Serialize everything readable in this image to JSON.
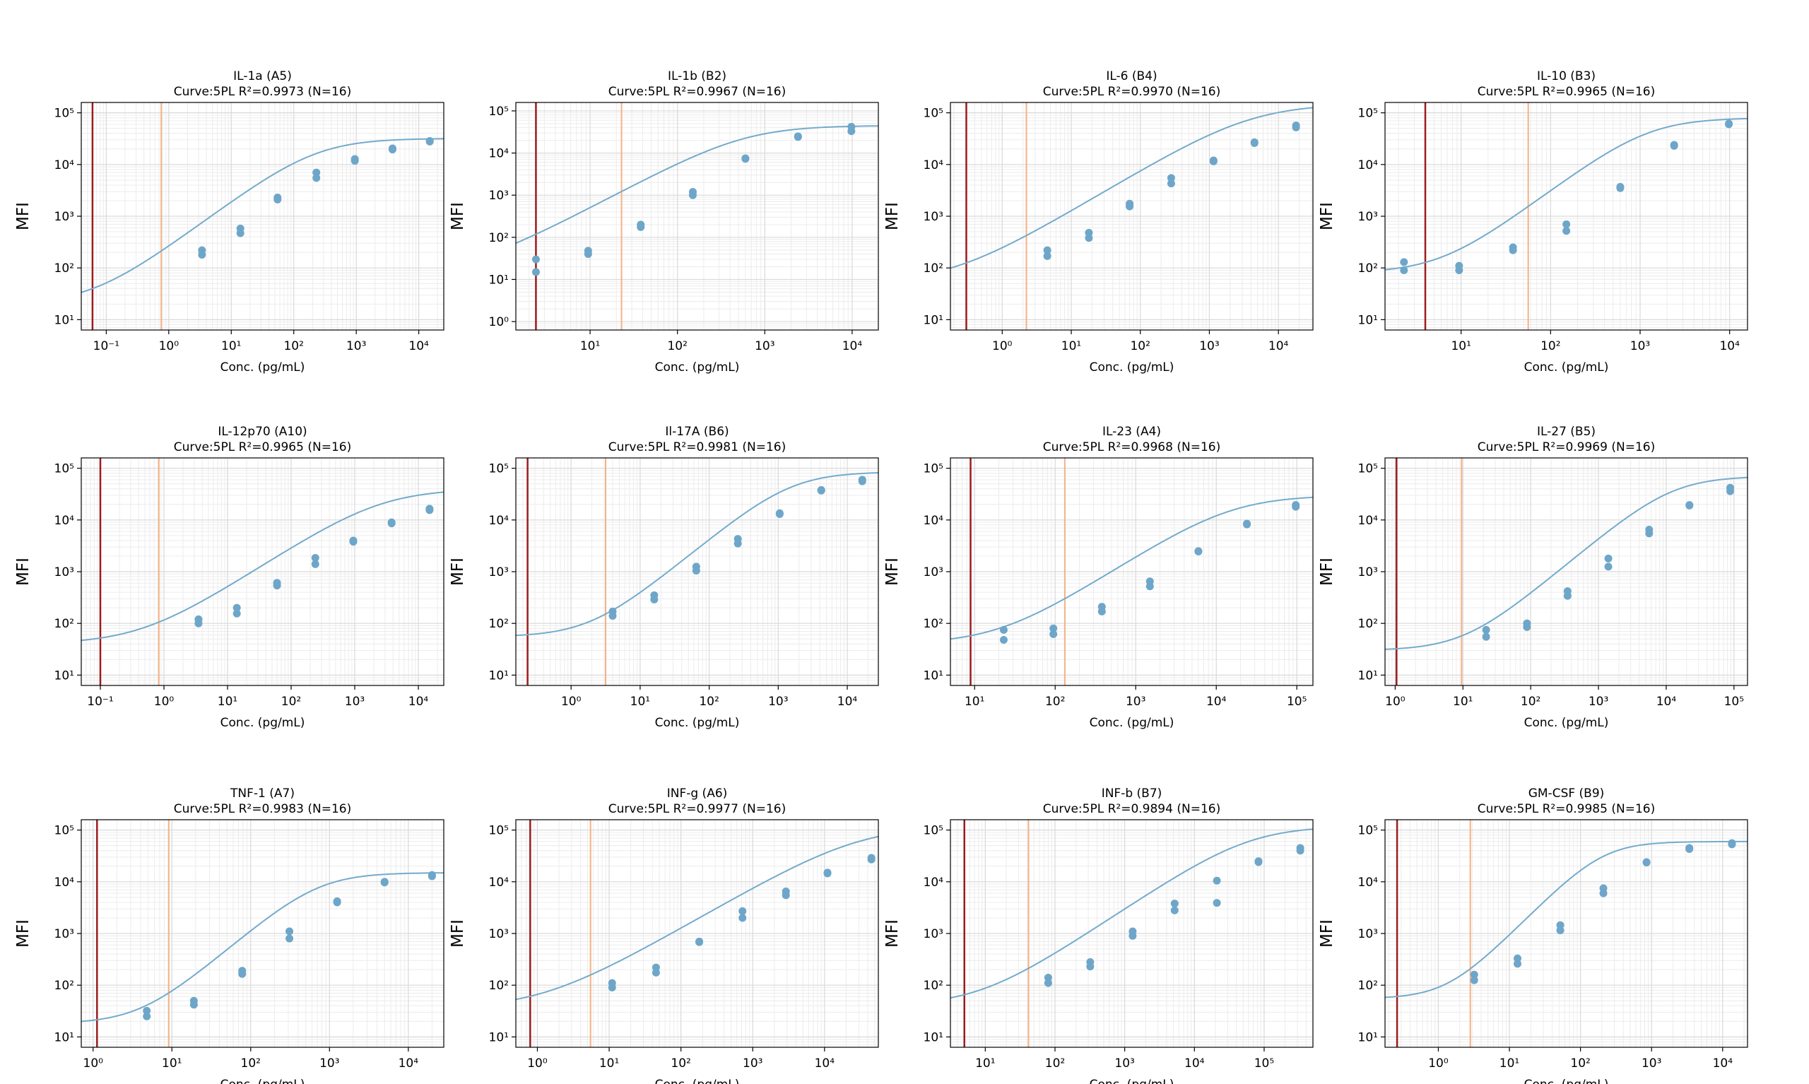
{
  "colors": {
    "curve": "#74aacb",
    "points": "#6ea6c9",
    "lod_line": "#9b1c1c",
    "loq_line": "#f4b183",
    "grid_major": "#d9d9d9",
    "grid_minor": "#ececec",
    "axis": "#000000"
  },
  "chart_data": [
    {
      "type": "scatter",
      "title": "IL-1a (A5)",
      "subtitle": "Curve:5PL R²=0.9973 (N=16)",
      "xlabel": "Conc. (pg/mL)",
      "ylabel": "MFI",
      "xlim_log10": [
        -1.4,
        4.4
      ],
      "ylim_log10": [
        0.8,
        5.2
      ],
      "xticks_exp": [
        -1,
        0,
        1,
        2,
        3,
        4
      ],
      "yticks_exp": [
        1,
        2,
        3,
        4,
        5
      ],
      "lod_log10": -1.22,
      "loq_log10": -0.12,
      "points": [
        [
          3.4,
          220
        ],
        [
          3.4,
          180
        ],
        [
          14,
          580
        ],
        [
          14,
          470
        ],
        [
          55,
          2300
        ],
        [
          55,
          2100
        ],
        [
          230,
          7000
        ],
        [
          230,
          5500
        ],
        [
          950,
          12800
        ],
        [
          950,
          11800
        ],
        [
          3800,
          20500
        ],
        [
          3800,
          19500
        ],
        [
          15000,
          28500
        ],
        [
          15000,
          27800
        ]
      ],
      "curve": {
        "A": 20,
        "D": 32000,
        "C": 220,
        "B": 0.9,
        "G": 1.0
      }
    },
    {
      "type": "scatter",
      "title": "IL-1b (B2)",
      "subtitle": "Curve:5PL R²=0.9967 (N=16)",
      "xlabel": "Conc. (pg/mL)",
      "ylabel": "MFI",
      "xlim_log10": [
        0.15,
        4.3
      ],
      "ylim_log10": [
        -0.2,
        5.2
      ],
      "xticks_exp": [
        1,
        2,
        3,
        4
      ],
      "yticks_exp": [
        0,
        1,
        2,
        3,
        4,
        5
      ],
      "lod_log10": 0.38,
      "loq_log10": 1.36,
      "points": [
        [
          2.4,
          30
        ],
        [
          2.4,
          15
        ],
        [
          9.5,
          48
        ],
        [
          9.5,
          40
        ],
        [
          38,
          200
        ],
        [
          38,
          175
        ],
        [
          150,
          1200
        ],
        [
          150,
          1000
        ],
        [
          600,
          7500
        ],
        [
          600,
          7300
        ],
        [
          2400,
          25000
        ],
        [
          2400,
          24000
        ],
        [
          9800,
          42000
        ],
        [
          9800,
          33000
        ]
      ],
      "curve": {
        "A": 15,
        "D": 45000,
        "C": 600,
        "B": 1.1,
        "G": 1.0
      }
    },
    {
      "type": "scatter",
      "title": "IL-6 (B4)",
      "subtitle": "Curve:5PL R²=0.9970 (N=16)",
      "xlabel": "Conc. (pg/mL)",
      "ylabel": "MFI",
      "xlim_log10": [
        -0.75,
        4.5
      ],
      "ylim_log10": [
        0.8,
        5.2
      ],
      "xticks_exp": [
        0,
        1,
        2,
        3,
        4
      ],
      "yticks_exp": [
        1,
        2,
        3,
        4,
        5
      ],
      "lod_log10": -0.52,
      "loq_log10": 0.35,
      "points": [
        [
          4.5,
          220
        ],
        [
          4.5,
          170
        ],
        [
          18,
          480
        ],
        [
          18,
          380
        ],
        [
          70,
          1750
        ],
        [
          70,
          1550
        ],
        [
          280,
          5500
        ],
        [
          280,
          4300
        ],
        [
          1150,
          12000
        ],
        [
          1150,
          11500
        ],
        [
          4500,
          27000
        ],
        [
          4500,
          26000
        ],
        [
          18000,
          57000
        ],
        [
          18000,
          52000
        ]
      ],
      "curve": {
        "A": 50,
        "D": 150000,
        "C": 4000,
        "B": 0.8,
        "G": 1.0
      }
    },
    {
      "type": "scatter",
      "title": "IL-10 (B3)",
      "subtitle": "Curve:5PL R²=0.9965 (N=16)",
      "xlabel": "Conc. (pg/mL)",
      "ylabel": "MFI",
      "xlim_log10": [
        0.15,
        4.2
      ],
      "ylim_log10": [
        0.8,
        5.2
      ],
      "xticks_exp": [
        1,
        2,
        3,
        4
      ],
      "yticks_exp": [
        1,
        2,
        3,
        4,
        5
      ],
      "lod_log10": 0.6,
      "loq_log10": 1.75,
      "points": [
        [
          2.3,
          130
        ],
        [
          2.3,
          90
        ],
        [
          9.5,
          110
        ],
        [
          9.5,
          90
        ],
        [
          38,
          250
        ],
        [
          38,
          220
        ],
        [
          150,
          700
        ],
        [
          150,
          520
        ],
        [
          600,
          3700
        ],
        [
          600,
          3500
        ],
        [
          2400,
          24000
        ],
        [
          2400,
          23000
        ],
        [
          9800,
          62000
        ],
        [
          9800,
          60000
        ]
      ],
      "curve": {
        "A": 80,
        "D": 80000,
        "C": 1200,
        "B": 1.3,
        "G": 1.0
      }
    },
    {
      "type": "scatter",
      "title": "IL-12p70 (A10)",
      "subtitle": "Curve:5PL R²=0.9965 (N=16)",
      "xlabel": "Conc. (pg/mL)",
      "ylabel": "MFI",
      "xlim_log10": [
        -1.3,
        4.4
      ],
      "ylim_log10": [
        0.8,
        5.2
      ],
      "xticks_exp": [
        -1,
        0,
        1,
        2,
        3,
        4
      ],
      "yticks_exp": [
        1,
        2,
        3,
        4,
        5
      ],
      "lod_log10": -1.0,
      "loq_log10": -0.08,
      "points": [
        [
          3.5,
          120
        ],
        [
          3.5,
          100
        ],
        [
          14,
          200
        ],
        [
          14,
          155
        ],
        [
          60,
          610
        ],
        [
          60,
          540
        ],
        [
          240,
          1850
        ],
        [
          240,
          1400
        ],
        [
          950,
          4000
        ],
        [
          950,
          3800
        ],
        [
          3800,
          9000
        ],
        [
          3800,
          8600
        ],
        [
          15000,
          16500
        ],
        [
          15000,
          15500
        ]
      ],
      "curve": {
        "A": 40,
        "D": 40000,
        "C": 2500,
        "B": 0.8,
        "G": 1.0
      }
    },
    {
      "type": "scatter",
      "title": "Il-17A (B6)",
      "subtitle": "Curve:5PL R²=0.9981 (N=16)",
      "xlabel": "Conc. (pg/mL)",
      "ylabel": "MFI",
      "xlim_log10": [
        -0.8,
        4.45
      ],
      "ylim_log10": [
        0.8,
        5.2
      ],
      "xticks_exp": [
        0,
        1,
        2,
        3,
        4
      ],
      "yticks_exp": [
        1,
        2,
        3,
        4,
        5
      ],
      "lod_log10": -0.63,
      "loq_log10": 0.5,
      "points": [
        [
          4,
          170
        ],
        [
          4,
          140
        ],
        [
          16,
          350
        ],
        [
          16,
          290
        ],
        [
          65,
          1250
        ],
        [
          65,
          1050
        ],
        [
          260,
          4300
        ],
        [
          260,
          3500
        ],
        [
          1050,
          13500
        ],
        [
          1050,
          13000
        ],
        [
          4200,
          38000
        ],
        [
          4200,
          37000
        ],
        [
          16500,
          60000
        ],
        [
          16500,
          56000
        ]
      ],
      "curve": {
        "A": 55,
        "D": 85000,
        "C": 1500,
        "B": 1.1,
        "G": 1.0
      }
    },
    {
      "type": "scatter",
      "title": "IL-23 (A4)",
      "subtitle": "Curve:5PL R²=0.9968 (N=16)",
      "xlabel": "Conc. (pg/mL)",
      "ylabel": "MFI",
      "xlim_log10": [
        0.7,
        5.2
      ],
      "ylim_log10": [
        0.8,
        5.2
      ],
      "xticks_exp": [
        1,
        2,
        3,
        4,
        5
      ],
      "yticks_exp": [
        1,
        2,
        3,
        4,
        5
      ],
      "lod_log10": 0.95,
      "loq_log10": 2.12,
      "points": [
        [
          23,
          75
        ],
        [
          23,
          48
        ],
        [
          95,
          80
        ],
        [
          95,
          62
        ],
        [
          380,
          210
        ],
        [
          380,
          170
        ],
        [
          1500,
          650
        ],
        [
          1500,
          520
        ],
        [
          6000,
          2500
        ],
        [
          6000,
          2450
        ],
        [
          24000,
          8500
        ],
        [
          24000,
          8200
        ],
        [
          97000,
          19500
        ],
        [
          97000,
          18000
        ]
      ],
      "curve": {
        "A": 40,
        "D": 30000,
        "C": 15000,
        "B": 1.0,
        "G": 1.0
      }
    },
    {
      "type": "scatter",
      "title": "IL-27 (B5)",
      "subtitle": "Curve:5PL R²=0.9969 (N=16)",
      "xlabel": "Conc. (pg/mL)",
      "ylabel": "MFI",
      "xlim_log10": [
        -0.15,
        5.2
      ],
      "ylim_log10": [
        0.8,
        5.2
      ],
      "xticks_exp": [
        0,
        1,
        2,
        3,
        4,
        5
      ],
      "yticks_exp": [
        1,
        2,
        3,
        4,
        5
      ],
      "lod_log10": 0.02,
      "loq_log10": 0.98,
      "points": [
        [
          22,
          75
        ],
        [
          22,
          55
        ],
        [
          88,
          100
        ],
        [
          88,
          85
        ],
        [
          350,
          420
        ],
        [
          350,
          340
        ],
        [
          1400,
          1800
        ],
        [
          1400,
          1250
        ],
        [
          5600,
          6500
        ],
        [
          5600,
          5500
        ],
        [
          22000,
          19500
        ],
        [
          22000,
          19000
        ],
        [
          88000,
          42000
        ],
        [
          88000,
          36000
        ]
      ],
      "curve": {
        "A": 30,
        "D": 70000,
        "C": 12000,
        "B": 1.1,
        "G": 1.0
      }
    },
    {
      "type": "scatter",
      "title": "TNF-1 (A7)",
      "subtitle": "Curve:5PL R²=0.9983 (N=16)",
      "xlabel": "Conc. (pg/mL)",
      "ylabel": "MFI",
      "xlim_log10": [
        -0.15,
        4.45
      ],
      "ylim_log10": [
        0.8,
        5.2
      ],
      "xticks_exp": [
        0,
        1,
        2,
        3,
        4
      ],
      "yticks_exp": [
        1,
        2,
        3,
        4,
        5
      ],
      "lod_log10": 0.05,
      "loq_log10": 0.96,
      "points": [
        [
          4.8,
          32
        ],
        [
          4.8,
          25
        ],
        [
          19,
          50
        ],
        [
          19,
          42
        ],
        [
          78,
          190
        ],
        [
          78,
          165
        ],
        [
          310,
          1100
        ],
        [
          310,
          800
        ],
        [
          1250,
          4200
        ],
        [
          1250,
          4000
        ],
        [
          5000,
          10000
        ],
        [
          5000,
          9700
        ],
        [
          20000,
          13500
        ],
        [
          20000,
          12800
        ]
      ],
      "curve": {
        "A": 18,
        "D": 15000,
        "C": 700,
        "B": 1.3,
        "G": 1.0
      }
    },
    {
      "type": "scatter",
      "title": "INF-g (A6)",
      "subtitle": "Curve:5PL R²=0.9977 (N=16)",
      "xlabel": "Conc. (pg/mL)",
      "ylabel": "MFI",
      "xlim_log10": [
        -0.3,
        4.75
      ],
      "ylim_log10": [
        0.8,
        5.2
      ],
      "xticks_exp": [
        0,
        1,
        2,
        3,
        4
      ],
      "yticks_exp": [
        1,
        2,
        3,
        4,
        5
      ],
      "lod_log10": -0.1,
      "loq_log10": 0.74,
      "points": [
        [
          11,
          110
        ],
        [
          11,
          90
        ],
        [
          45,
          220
        ],
        [
          45,
          175
        ],
        [
          180,
          700
        ],
        [
          180,
          680
        ],
        [
          720,
          2700
        ],
        [
          720,
          2000
        ],
        [
          2900,
          6500
        ],
        [
          2900,
          5500
        ],
        [
          11000,
          15000
        ],
        [
          11000,
          14500
        ],
        [
          45000,
          29000
        ],
        [
          45000,
          27000
        ]
      ],
      "curve": {
        "A": 35,
        "D": 120000,
        "C": 30000,
        "B": 0.8,
        "G": 1.0
      }
    },
    {
      "type": "scatter",
      "title": "INF-b (B7)",
      "subtitle": "Curve:5PL R²=0.9894 (N=16)",
      "xlabel": "Conc. (pg/mL)",
      "ylabel": "MFI",
      "xlim_log10": [
        0.5,
        5.7
      ],
      "ylim_log10": [
        0.8,
        5.2
      ],
      "xticks_exp": [
        1,
        2,
        3,
        4,
        5
      ],
      "yticks_exp": [
        1,
        2,
        3,
        4,
        5
      ],
      "lod_log10": 0.7,
      "loq_log10": 1.62,
      "points": [
        [
          80,
          140
        ],
        [
          80,
          110
        ],
        [
          320,
          280
        ],
        [
          320,
          230
        ],
        [
          1300,
          1100
        ],
        [
          1300,
          900
        ],
        [
          5200,
          3800
        ],
        [
          5200,
          2800
        ],
        [
          21000,
          10500
        ],
        [
          21000,
          3900
        ],
        [
          83000,
          25000
        ],
        [
          83000,
          24000
        ],
        [
          330000,
          45000
        ],
        [
          330000,
          40000
        ]
      ],
      "curve": {
        "A": 40,
        "D": 120000,
        "C": 60000,
        "B": 0.9,
        "G": 1.0
      }
    },
    {
      "type": "scatter",
      "title": "GM-CSF (B9)",
      "subtitle": "Curve:5PL R²=0.9985 (N=16)",
      "xlabel": "Conc. (pg/mL)",
      "ylabel": "MFI",
      "xlim_log10": [
        -0.75,
        4.35
      ],
      "ylim_log10": [
        0.8,
        5.2
      ],
      "xticks_exp": [
        0,
        1,
        2,
        3,
        4
      ],
      "yticks_exp": [
        1,
        2,
        3,
        4,
        5
      ],
      "lod_log10": -0.58,
      "loq_log10": 0.45,
      "points": [
        [
          3.2,
          160
        ],
        [
          3.2,
          125
        ],
        [
          13,
          330
        ],
        [
          13,
          260
        ],
        [
          52,
          1450
        ],
        [
          52,
          1150
        ],
        [
          210,
          7500
        ],
        [
          210,
          6000
        ],
        [
          850,
          24000
        ],
        [
          850,
          23500
        ],
        [
          3400,
          45000
        ],
        [
          3400,
          43000
        ],
        [
          13500,
          56000
        ],
        [
          13500,
          53000
        ]
      ],
      "curve": {
        "A": 55,
        "D": 60000,
        "C": 200,
        "B": 1.4,
        "G": 1.0
      }
    }
  ]
}
